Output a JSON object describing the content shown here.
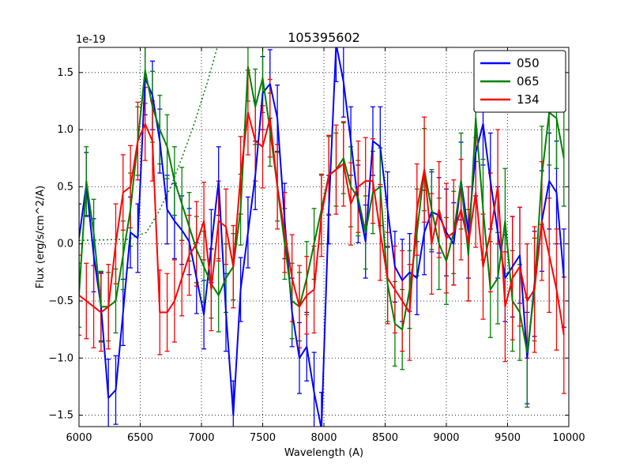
{
  "figure": {
    "background": "#ffffff",
    "frame_color": "#000000",
    "grid_color": "#000000"
  },
  "chart_data": {
    "type": "line",
    "title": "105395602",
    "xlabel": "Wavelength (A)",
    "ylabel": "Flux (erg/s/cm^2/A)",
    "y_offset_text": "1e-19",
    "xlim": [
      6000,
      10000
    ],
    "ylim": [
      -1.6,
      1.72
    ],
    "grid": true,
    "legend_position": "upper right",
    "xticks": [
      6000,
      6500,
      7000,
      7500,
      8000,
      8500,
      9000,
      9500,
      10000
    ],
    "xticklabels": [
      "6000",
      "6500",
      "7000",
      "7500",
      "8000",
      "8500",
      "9000",
      "9500",
      "10000"
    ],
    "yticks": [
      -1.5,
      -1.0,
      -0.5,
      0.0,
      0.5,
      1.0,
      1.5
    ],
    "yticklabels": [
      "−1.5",
      "−1.0",
      "−0.5",
      "0.0",
      "0.5",
      "1.0",
      "1.5"
    ],
    "x": [
      6000,
      6060,
      6120,
      6180,
      6240,
      6300,
      6360,
      6420,
      6480,
      6540,
      6600,
      6660,
      6720,
      6780,
      6840,
      6900,
      6960,
      7020,
      7080,
      7140,
      7200,
      7260,
      7320,
      7380,
      7440,
      7500,
      7560,
      7620,
      7680,
      7740,
      7800,
      7860,
      7920,
      7980,
      8040,
      8100,
      8160,
      8220,
      8280,
      8340,
      8400,
      8460,
      8520,
      8580,
      8640,
      8700,
      8760,
      8820,
      8880,
      8940,
      9000,
      9060,
      9120,
      9180,
      9240,
      9300,
      9360,
      9420,
      9480,
      9540,
      9600,
      9660,
      9720,
      9780,
      9840,
      9900,
      9960
    ],
    "series": [
      {
        "name": "050",
        "color": "#0000ff",
        "values": [
          0.05,
          0.52,
          -0.1,
          -0.55,
          -1.35,
          -1.28,
          -0.6,
          0.1,
          0.05,
          1.45,
          1.3,
          0.9,
          0.3,
          0.2,
          0.12,
          0.02,
          -0.3,
          -0.62,
          -0.02,
          0.55,
          -0.6,
          -1.5,
          -0.4,
          0.1,
          0.6,
          1.32,
          1.4,
          1.1,
          0.2,
          -0.6,
          -1.0,
          -0.9,
          -1.3,
          -1.62,
          0.3,
          1.75,
          1.42,
          0.9,
          0.35,
          0.02,
          0.9,
          0.85,
          0.3,
          -0.2,
          -0.32,
          -0.25,
          -0.3,
          0.1,
          0.28,
          0.25,
          0.1,
          0.0,
          0.55,
          0.1,
          0.8,
          1.05,
          0.55,
          0.1,
          -0.3,
          -0.2,
          -0.1,
          -1.0,
          -0.35,
          0.2,
          0.55,
          0.45,
          -0.3
        ],
        "errors": [
          0.3,
          0.28,
          0.32,
          0.3,
          0.34,
          0.3,
          0.29,
          0.31,
          0.3,
          0.32,
          0.3,
          0.28,
          0.3,
          0.33,
          0.3,
          0.29,
          0.31,
          0.3,
          0.32,
          0.3,
          0.34,
          0.3,
          0.28,
          0.31,
          0.3,
          0.32,
          0.3,
          0.29,
          0.33,
          0.3,
          0.31,
          0.3,
          0.35,
          0.32,
          0.3,
          0.33,
          0.31,
          0.3,
          0.34,
          0.32,
          0.3,
          0.35,
          0.33,
          0.31,
          0.36,
          0.34,
          0.32,
          0.37,
          0.35,
          0.33,
          0.38,
          0.36,
          0.34,
          0.4,
          0.38,
          0.36,
          0.42,
          0.4,
          0.38,
          0.44,
          0.42,
          0.4,
          0.46,
          0.44,
          0.42,
          0.45,
          0.43
        ]
      },
      {
        "name": "065",
        "color": "#008000",
        "values": [
          -0.45,
          0.55,
          0.1,
          -0.55,
          -0.55,
          -0.5,
          -0.1,
          0.3,
          0.9,
          1.52,
          1.2,
          1.0,
          0.85,
          0.55,
          0.35,
          0.15,
          -0.05,
          -0.2,
          -0.35,
          -0.45,
          -0.3,
          -0.2,
          0.3,
          1.55,
          1.2,
          1.45,
          1.0,
          0.5,
          0.0,
          -0.5,
          -0.55,
          -0.3,
          0.0,
          0.3,
          0.6,
          0.65,
          0.75,
          0.5,
          0.4,
          0.1,
          0.45,
          0.5,
          -0.35,
          -0.7,
          -0.75,
          -0.4,
          0.1,
          0.65,
          0.3,
          0.0,
          -0.15,
          0.1,
          0.55,
          -0.1,
          1.1,
          0.3,
          -0.4,
          -0.3,
          0.2,
          -0.5,
          -0.6,
          -0.95,
          -0.4,
          0.6,
          1.15,
          1.1,
          0.75
        ],
        "errors": [
          0.28,
          0.3,
          0.29,
          0.31,
          0.3,
          0.28,
          0.3,
          0.32,
          0.3,
          0.29,
          0.31,
          0.3,
          0.28,
          0.3,
          0.32,
          0.3,
          0.29,
          0.31,
          0.3,
          0.32,
          0.3,
          0.29,
          0.31,
          0.3,
          0.33,
          0.3,
          0.32,
          0.3,
          0.31,
          0.33,
          0.3,
          0.32,
          0.31,
          0.3,
          0.34,
          0.32,
          0.31,
          0.35,
          0.33,
          0.32,
          0.36,
          0.34,
          0.33,
          0.37,
          0.35,
          0.34,
          0.38,
          0.36,
          0.35,
          0.4,
          0.38,
          0.36,
          0.42,
          0.4,
          0.38,
          0.44,
          0.42,
          0.4,
          0.46,
          0.44,
          0.42,
          0.48,
          0.45,
          0.43,
          0.46,
          0.44,
          0.42
        ]
      },
      {
        "name": "134",
        "color": "#ff0000",
        "values": [
          -0.45,
          -0.5,
          -0.55,
          -0.6,
          -0.55,
          0.0,
          0.45,
          0.5,
          0.9,
          1.05,
          0.9,
          -0.6,
          -0.6,
          -0.5,
          -0.3,
          -0.1,
          0.0,
          0.2,
          -0.4,
          0.2,
          0.15,
          -0.2,
          0.6,
          1.15,
          0.9,
          0.85,
          1.1,
          0.5,
          0.1,
          -0.3,
          -0.55,
          -0.45,
          -0.4,
          0.25,
          0.6,
          0.65,
          0.7,
          0.35,
          0.5,
          0.55,
          0.55,
          0.1,
          -0.3,
          -0.4,
          -0.5,
          -0.6,
          0.3,
          0.65,
          0.0,
          0.3,
          0.05,
          0.1,
          0.3,
          0.0,
          0.45,
          -0.2,
          0.1,
          0.5,
          -0.55,
          -0.3,
          -0.2,
          -0.5,
          -0.4,
          0.2,
          -0.1,
          -0.4,
          -0.8
        ],
        "errors": [
          0.35,
          0.33,
          0.36,
          0.34,
          0.37,
          0.35,
          0.33,
          0.36,
          0.34,
          0.32,
          0.35,
          0.37,
          0.34,
          0.36,
          0.33,
          0.35,
          0.37,
          0.34,
          0.36,
          0.35,
          0.33,
          0.36,
          0.34,
          0.37,
          0.35,
          0.36,
          0.34,
          0.37,
          0.35,
          0.38,
          0.36,
          0.34,
          0.38,
          0.36,
          0.35,
          0.39,
          0.37,
          0.36,
          0.4,
          0.38,
          0.37,
          0.42,
          0.4,
          0.38,
          0.44,
          0.42,
          0.4,
          0.46,
          0.44,
          0.42,
          0.48,
          0.46,
          0.44,
          0.5,
          0.48,
          0.46,
          0.52,
          0.5,
          0.48,
          0.54,
          0.52,
          0.5,
          0.55,
          0.52,
          0.5,
          0.53,
          0.51
        ]
      }
    ],
    "overlay": {
      "name": "dotted-reference-curve",
      "color": "#008000",
      "style": "dotted",
      "points": [
        [
          6000,
          0.03
        ],
        [
          6400,
          0.04
        ],
        [
          6550,
          0.1
        ],
        [
          6650,
          0.28
        ],
        [
          6750,
          0.5
        ],
        [
          6850,
          0.78
        ],
        [
          6950,
          1.08
        ],
        [
          7050,
          1.42
        ],
        [
          7150,
          1.8
        ],
        [
          7250,
          2.15
        ],
        [
          7320,
          2.4
        ]
      ]
    }
  }
}
